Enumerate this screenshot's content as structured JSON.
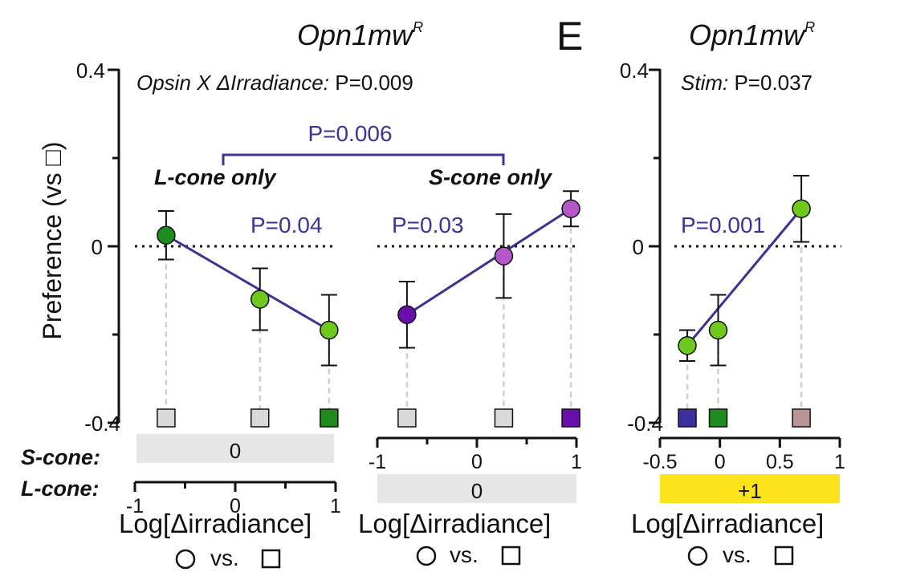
{
  "figure": {
    "panel_letter": "E",
    "y_axis_label": "Preference (vs □)",
    "y_ticks": [
      "0.4",
      "0",
      "-0.4"
    ],
    "row_labels": {
      "s_cone": "S-cone:",
      "l_cone": "L-cone:"
    },
    "circle_vs_square": {
      "circle": "○",
      "vs": "vs.",
      "square": "□"
    }
  },
  "colors": {
    "line": "#3d3296",
    "dark_green": "#1e8b1e",
    "light_green": "#6ec81e",
    "purple": "#6a0dad",
    "orchid": "#b557c8",
    "gray_box": "#d9d9d9",
    "indigo": "#3b2fa0",
    "rosy": "#b99595",
    "yellow": "#fde31c"
  },
  "chart_data": [
    {
      "type": "line",
      "title": "Opn1mw",
      "title_superscript": "R",
      "annotation": "Opsin X ΔIrradiance: P=0.009",
      "annotation_italic": "Opsin X ΔIrradiance:",
      "annotation_plain": "P=0.009",
      "bracket_label": "P=0.006",
      "ylim": [
        -0.4,
        0.4
      ],
      "ylabel": "Preference (vs □)",
      "subplots": [
        {
          "group_label": "L-cone only",
          "trend_p": "P=0.04",
          "xlim": [
            -1,
            1
          ],
          "xticks": [
            "-1",
            "0",
            "1"
          ],
          "x_axis_row": "L-cone",
          "fixed_bar_row": "S-cone",
          "fixed_bar_value": "0",
          "xlabel": "Log[Δirradiance]",
          "points": [
            {
              "x": -0.7,
              "y": 0.025,
              "err": 0.055,
              "color": "#1e8b1e",
              "square": "#d9d9d9"
            },
            {
              "x": 0.25,
              "y": -0.12,
              "err": 0.07,
              "color": "#6ec81e",
              "square": "#d9d9d9"
            },
            {
              "x": 0.95,
              "y": -0.19,
              "err": 0.08,
              "color": "#6ec81e",
              "square": "#1e8b1e"
            }
          ]
        },
        {
          "group_label": "S-cone only",
          "trend_p": "P=0.03",
          "xlim": [
            -1,
            1
          ],
          "xticks": [
            "-1",
            "0",
            "1"
          ],
          "x_axis_row": "S-cone",
          "fixed_bar_row": "L-cone",
          "fixed_bar_value": "0",
          "xlabel": "Log[Δirradiance]",
          "points": [
            {
              "x": -0.7,
              "y": -0.155,
              "err": 0.075,
              "color": "#6a0dad",
              "square": "#d9d9d9"
            },
            {
              "x": 0.28,
              "y": -0.022,
              "err": 0.095,
              "color": "#b557c8",
              "square": "#d9d9d9"
            },
            {
              "x": 0.96,
              "y": 0.085,
              "err": 0.04,
              "color": "#b557c8",
              "square": "#6a0dad"
            }
          ]
        }
      ]
    },
    {
      "type": "line",
      "title": "Opn1mw",
      "title_superscript": "R",
      "annotation": "Stim: P=0.037",
      "annotation_italic": "Stim:",
      "annotation_plain": "P=0.037",
      "trend_p": "P=0.001",
      "ylim": [
        -0.4,
        0.4
      ],
      "xlim": [
        -0.5,
        1
      ],
      "xticks": [
        "-0.5",
        "0",
        "0.5",
        "1"
      ],
      "fixed_bar_value": "+1",
      "xlabel": "Log[Δirradiance]",
      "points": [
        {
          "x": -0.27,
          "y": -0.225,
          "err": 0.035,
          "color": "#6ec81e",
          "square": "#3b2fa0"
        },
        {
          "x": -0.01,
          "y": -0.19,
          "err": 0.08,
          "color": "#6ec81e",
          "square": "#1e8b1e"
        },
        {
          "x": 0.69,
          "y": 0.085,
          "err": 0.075,
          "color": "#6ec81e",
          "square": "#b99595"
        }
      ]
    }
  ]
}
